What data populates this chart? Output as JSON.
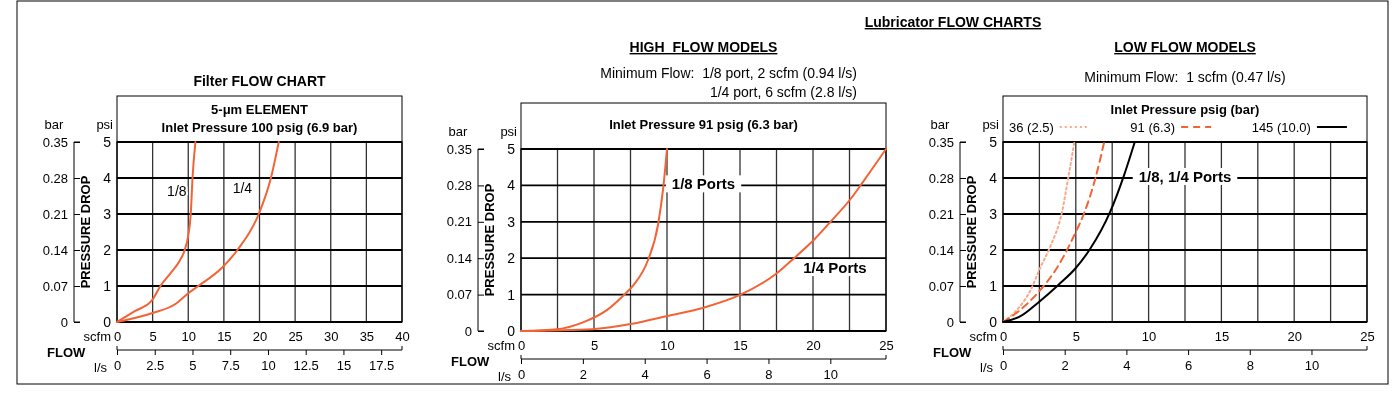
{
  "chart_data": [
    {
      "type": "line",
      "title": "Filter FLOW CHART",
      "xlabel": "FLOW",
      "ylabel": "PRESSURE DROP",
      "x2label": "l/s",
      "y2label": "bar",
      "annotations": [
        "scfm",
        "psi",
        "5-μm ELEMENT",
        "Inlet Pressure 100 psig (6.9 bar)"
      ],
      "xlim": [
        0,
        40
      ],
      "xticks": [
        0,
        5,
        10,
        15,
        20,
        25,
        30,
        35,
        40
      ],
      "x2lim": [
        0,
        18.88
      ],
      "x2ticks": [
        0,
        {
          "value": 2.5,
          "label": "2.5"
        },
        5,
        {
          "value": 7.5,
          "label": "7.5"
        },
        10,
        {
          "value": 12.5,
          "label": "12.5"
        },
        15,
        {
          "value": 17.5,
          "label": "17.5"
        }
      ],
      "ylim": [
        0,
        5
      ],
      "yticks": [
        0,
        1,
        2,
        3,
        4,
        5
      ],
      "y2lim": [
        0,
        0.35
      ],
      "y2ticks": [
        0,
        0.07,
        0.14,
        0.21,
        0.28,
        0.35
      ],
      "grid": true,
      "line_style": "solid",
      "series": [
        {
          "name": "1/8",
          "color": "#f26335",
          "x": [
            0,
            2.5,
            4.9,
            6.1,
            7.5,
            8.8,
            9.5,
            10,
            10.35,
            10.6,
            11
          ],
          "values": [
            0,
            0.3,
            0.6,
            1,
            1.35,
            1.7,
            2,
            2.4,
            3,
            4,
            5
          ]
        },
        {
          "name": "1/4",
          "color": "#f26335",
          "x": [
            0,
            5,
            8.2,
            10,
            11.4,
            14.7,
            16.9,
            19.9,
            21.6,
            22.7
          ],
          "values": [
            0,
            0.25,
            0.5,
            0.8,
            1,
            1.5,
            2,
            3,
            4,
            5
          ]
        }
      ]
    },
    {
      "type": "line",
      "title": "HIGH  FLOW MODELS",
      "subtitle": "Minimum Flow:  1/8 port, 2 scfm (0.94 l/s)\n1/4 port, 6 scfm (2.8 l/s)",
      "xlabel": "FLOW",
      "ylabel": "PRESSURE DROP",
      "x2label": "l/s",
      "y2label": "bar",
      "annotations": [
        "scfm",
        "psi",
        "Inlet Pressure 91 psig (6.3 bar)",
        "Lubricator FLOW CHARTS"
      ],
      "xlim": [
        0,
        25
      ],
      "xticks": [
        0,
        {
          "value": 2.5,
          "label": null
        },
        5,
        {
          "value": 7.5,
          "label": null
        },
        10,
        {
          "value": 12.5,
          "label": null
        },
        15,
        {
          "value": 17.5,
          "label": null
        },
        20,
        {
          "value": 22.5,
          "label": null
        },
        25
      ],
      "x2lim": [
        0,
        11.8
      ],
      "x2ticks": [
        0,
        2,
        4,
        6,
        8,
        10
      ],
      "ylim": [
        0,
        5
      ],
      "yticks": [
        0,
        1,
        2,
        3,
        4,
        5
      ],
      "y2lim": [
        0,
        0.35
      ],
      "y2ticks": [
        0,
        0.07,
        0.14,
        0.21,
        0.28,
        0.35
      ],
      "grid": true,
      "line_style": "solid",
      "series": [
        {
          "name": "1/8 Ports",
          "color": "#f26335",
          "x": [
            0,
            2.5,
            4.2,
            5.9,
            7,
            7.7,
            8.7,
            9.4,
            9.75,
            10
          ],
          "values": [
            0,
            0.05,
            0.23,
            0.58,
            0.97,
            1.26,
            1.95,
            2.95,
            3.96,
            5
          ]
        },
        {
          "name": "1/4 Ports",
          "color": "#f26335",
          "x": [
            0,
            4.9,
            7.5,
            10,
            12.5,
            15,
            17.5,
            18.7,
            20.1,
            21.2,
            22.6,
            23.5,
            25
          ],
          "values": [
            0,
            0.05,
            0.19,
            0.41,
            0.64,
            0.99,
            1.58,
            2,
            2.52,
            3,
            3.64,
            4.14,
            5
          ]
        }
      ]
    },
    {
      "type": "line",
      "title": "LOW FLOW MODELS",
      "subtitle": "Minimum Flow:  1 scfm (0.47 l/s)",
      "xlabel": "FLOW",
      "ylabel": "PRESSURE DROP",
      "x2label": "l/s",
      "y2label": "bar",
      "legend_title": "Inlet Pressure psig (bar)",
      "legend": "top",
      "annotations": [
        "scfm",
        "psi",
        "1/8, 1/4 Ports"
      ],
      "xlim": [
        0,
        25
      ],
      "xticks": [
        0,
        {
          "value": 2.5,
          "label": null
        },
        5,
        {
          "value": 7.5,
          "label": null
        },
        10,
        {
          "value": 12.5,
          "label": null
        },
        15,
        {
          "value": 17.5,
          "label": null
        },
        20,
        {
          "value": 22.5,
          "label": null
        },
        25
      ],
      "x2lim": [
        0,
        11.8
      ],
      "x2ticks": [
        0,
        2,
        4,
        6,
        8,
        10
      ],
      "ylim": [
        0,
        5
      ],
      "yticks": [
        0,
        1,
        2,
        3,
        4,
        5
      ],
      "y2lim": [
        0,
        0.35
      ],
      "y2ticks": [
        0,
        0.07,
        0.14,
        0.21,
        0.28,
        0.35
      ],
      "grid": true,
      "series": [
        {
          "name": "36 (2.5)",
          "color": "#f9a98a",
          "line_style": "dotted",
          "x": [
            0,
            0.85,
            1.9,
            2.55,
            3.25,
            4.05,
            4.5,
            4.9
          ],
          "values": [
            0,
            0.29,
            0.89,
            1.5,
            2.1,
            3.05,
            4.05,
            5
          ]
        },
        {
          "name": "91 (6.3)",
          "color": "#f26335",
          "line_style": "dashed",
          "x": [
            0,
            1.2,
            2.45,
            3.7,
            5,
            5.55,
            6.35,
            6.95
          ],
          "values": [
            0,
            0.34,
            0.84,
            1.5,
            2.5,
            3,
            4,
            5
          ]
        },
        {
          "name": "145 (10.0)",
          "color": "#000000",
          "line_style": "solid",
          "x": [
            0,
            1.2,
            2.45,
            3.8,
            5,
            6,
            7.35,
            8.3,
            9.05
          ],
          "values": [
            0,
            0.16,
            0.55,
            1.03,
            1.5,
            2.04,
            3.05,
            4.06,
            5
          ]
        }
      ]
    }
  ]
}
